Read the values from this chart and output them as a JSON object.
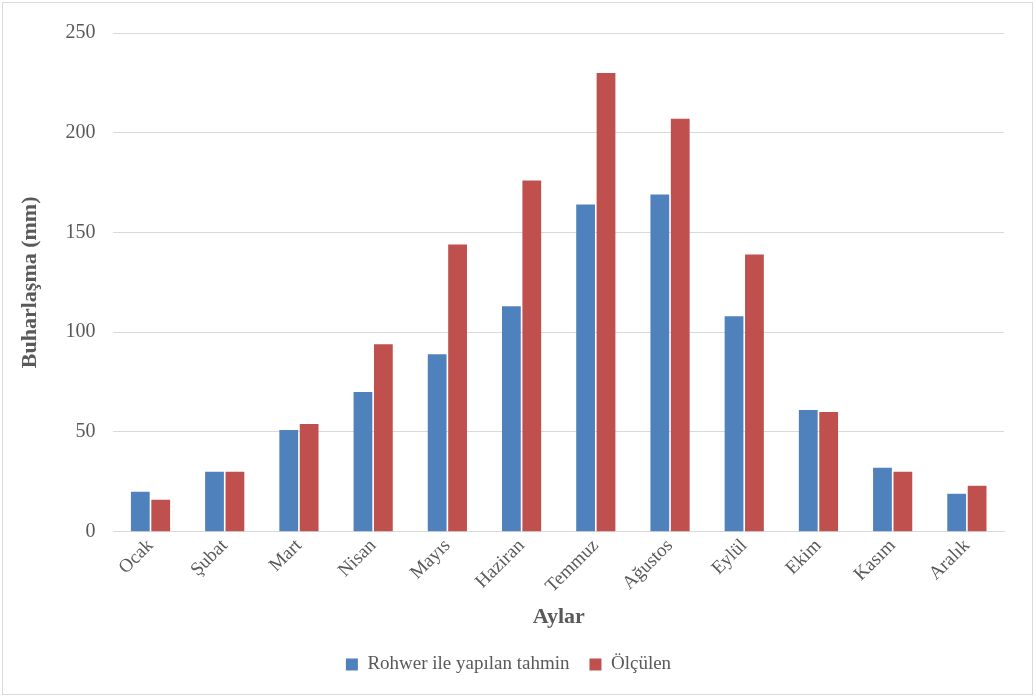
{
  "chart_data": {
    "type": "bar",
    "xlabel": "Aylar",
    "ylabel": "Buharlaşma (mm)",
    "categories": [
      "Ocak",
      "Şubat",
      "Mart",
      "Nisan",
      "Mayıs",
      "Haziran",
      "Temmuz",
      "Ağustos",
      "Eylül",
      "Ekim",
      "Kasım",
      "Aralık"
    ],
    "series": [
      {
        "name": "Rohwer ile yapılan tahmin",
        "color": "#4f81bd",
        "values": [
          20,
          30,
          51,
          70,
          89,
          113,
          164,
          169,
          108,
          61,
          32,
          19
        ]
      },
      {
        "name": "Ölçülen",
        "color": "#c0504d",
        "values": [
          16,
          30,
          54,
          94,
          144,
          176,
          230,
          207,
          139,
          60,
          30,
          23
        ]
      }
    ],
    "ylim": [
      0,
      250
    ],
    "yticks": [
      0,
      50,
      100,
      150,
      200,
      250
    ],
    "grid": "y",
    "legend": "bottom"
  }
}
